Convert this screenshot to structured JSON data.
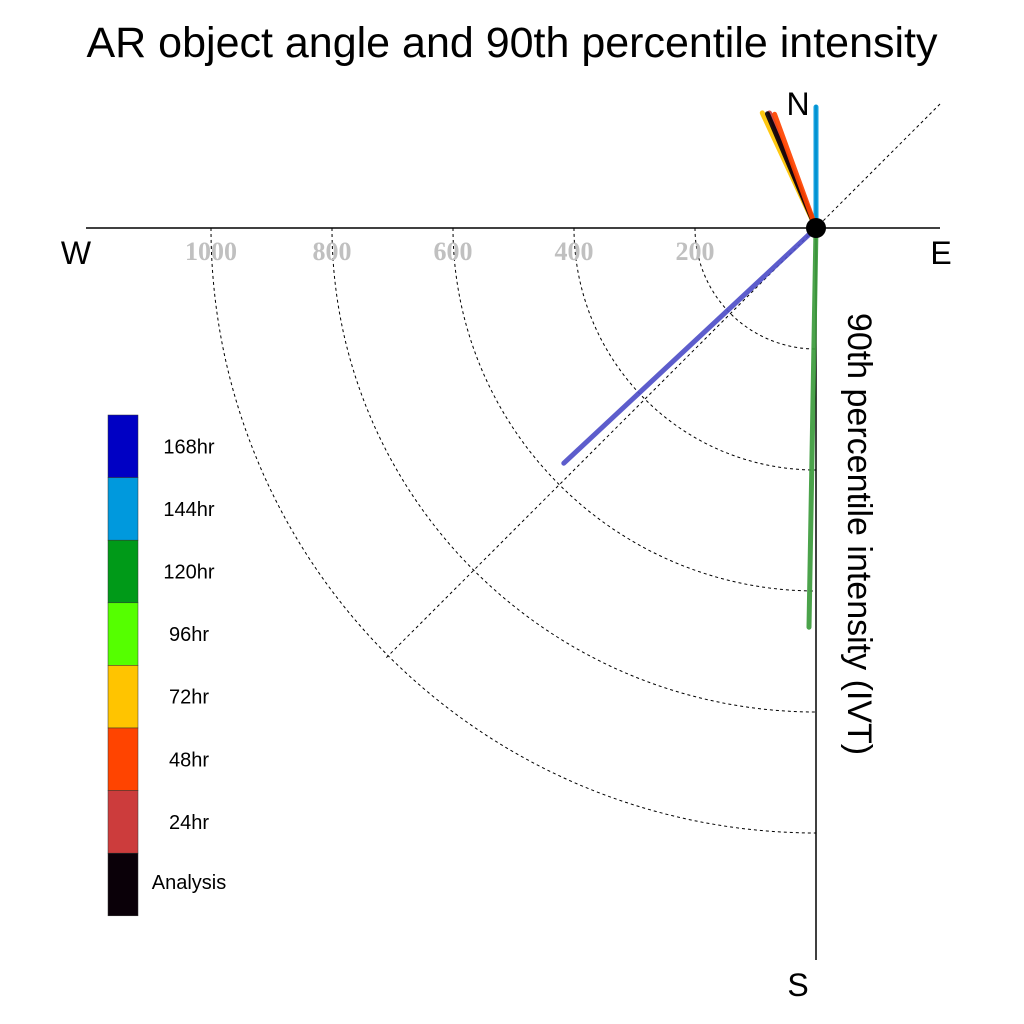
{
  "chart_data": {
    "type": "polar-vector",
    "title": "AR object angle and 90th percentile intensity",
    "ylabel": "90th percentile intensity (IVT)",
    "directions": {
      "north": "N",
      "south": "S",
      "east": "E",
      "west": "W"
    },
    "rticks": [
      "1000",
      "800",
      "600",
      "400",
      "200"
    ],
    "rtick_values": [
      1000,
      800,
      600,
      400,
      200
    ],
    "rmax": 1200,
    "legend": [
      {
        "label": "168hr",
        "color": "#0000c4"
      },
      {
        "label": "144hr",
        "color": "#0099dd"
      },
      {
        "label": "120hr",
        "color": "#009a18"
      },
      {
        "label": "96hr",
        "color": "#55ff00"
      },
      {
        "label": "72hr",
        "color": "#ffc400"
      },
      {
        "label": "48hr",
        "color": "#ff4400"
      },
      {
        "label": "24hr",
        "color": "#cc3c3c"
      },
      {
        "label": "Analysis",
        "color": "#0a0008"
      }
    ],
    "series": [
      {
        "name": "168hr",
        "color": "#5050c8",
        "angle_deg": 227,
        "intensity": 570
      },
      {
        "name": "120hr",
        "color": "#3c9c3c",
        "angle_deg": 181,
        "intensity": 660
      },
      {
        "name": "144hr",
        "color": "#0099dd",
        "angle_deg": 0,
        "intensity": 200
      },
      {
        "name": "72hr",
        "color": "#ffc400",
        "angle_deg": 335,
        "intensity": 210
      },
      {
        "name": "24hr",
        "color": "#cc3c3c",
        "angle_deg": 338,
        "intensity": 205
      },
      {
        "name": "Analysis",
        "color": "#0a0008",
        "angle_deg": 337,
        "intensity": 205
      },
      {
        "name": "48hr",
        "color": "#ff4400",
        "angle_deg": 340,
        "intensity": 200
      }
    ]
  }
}
